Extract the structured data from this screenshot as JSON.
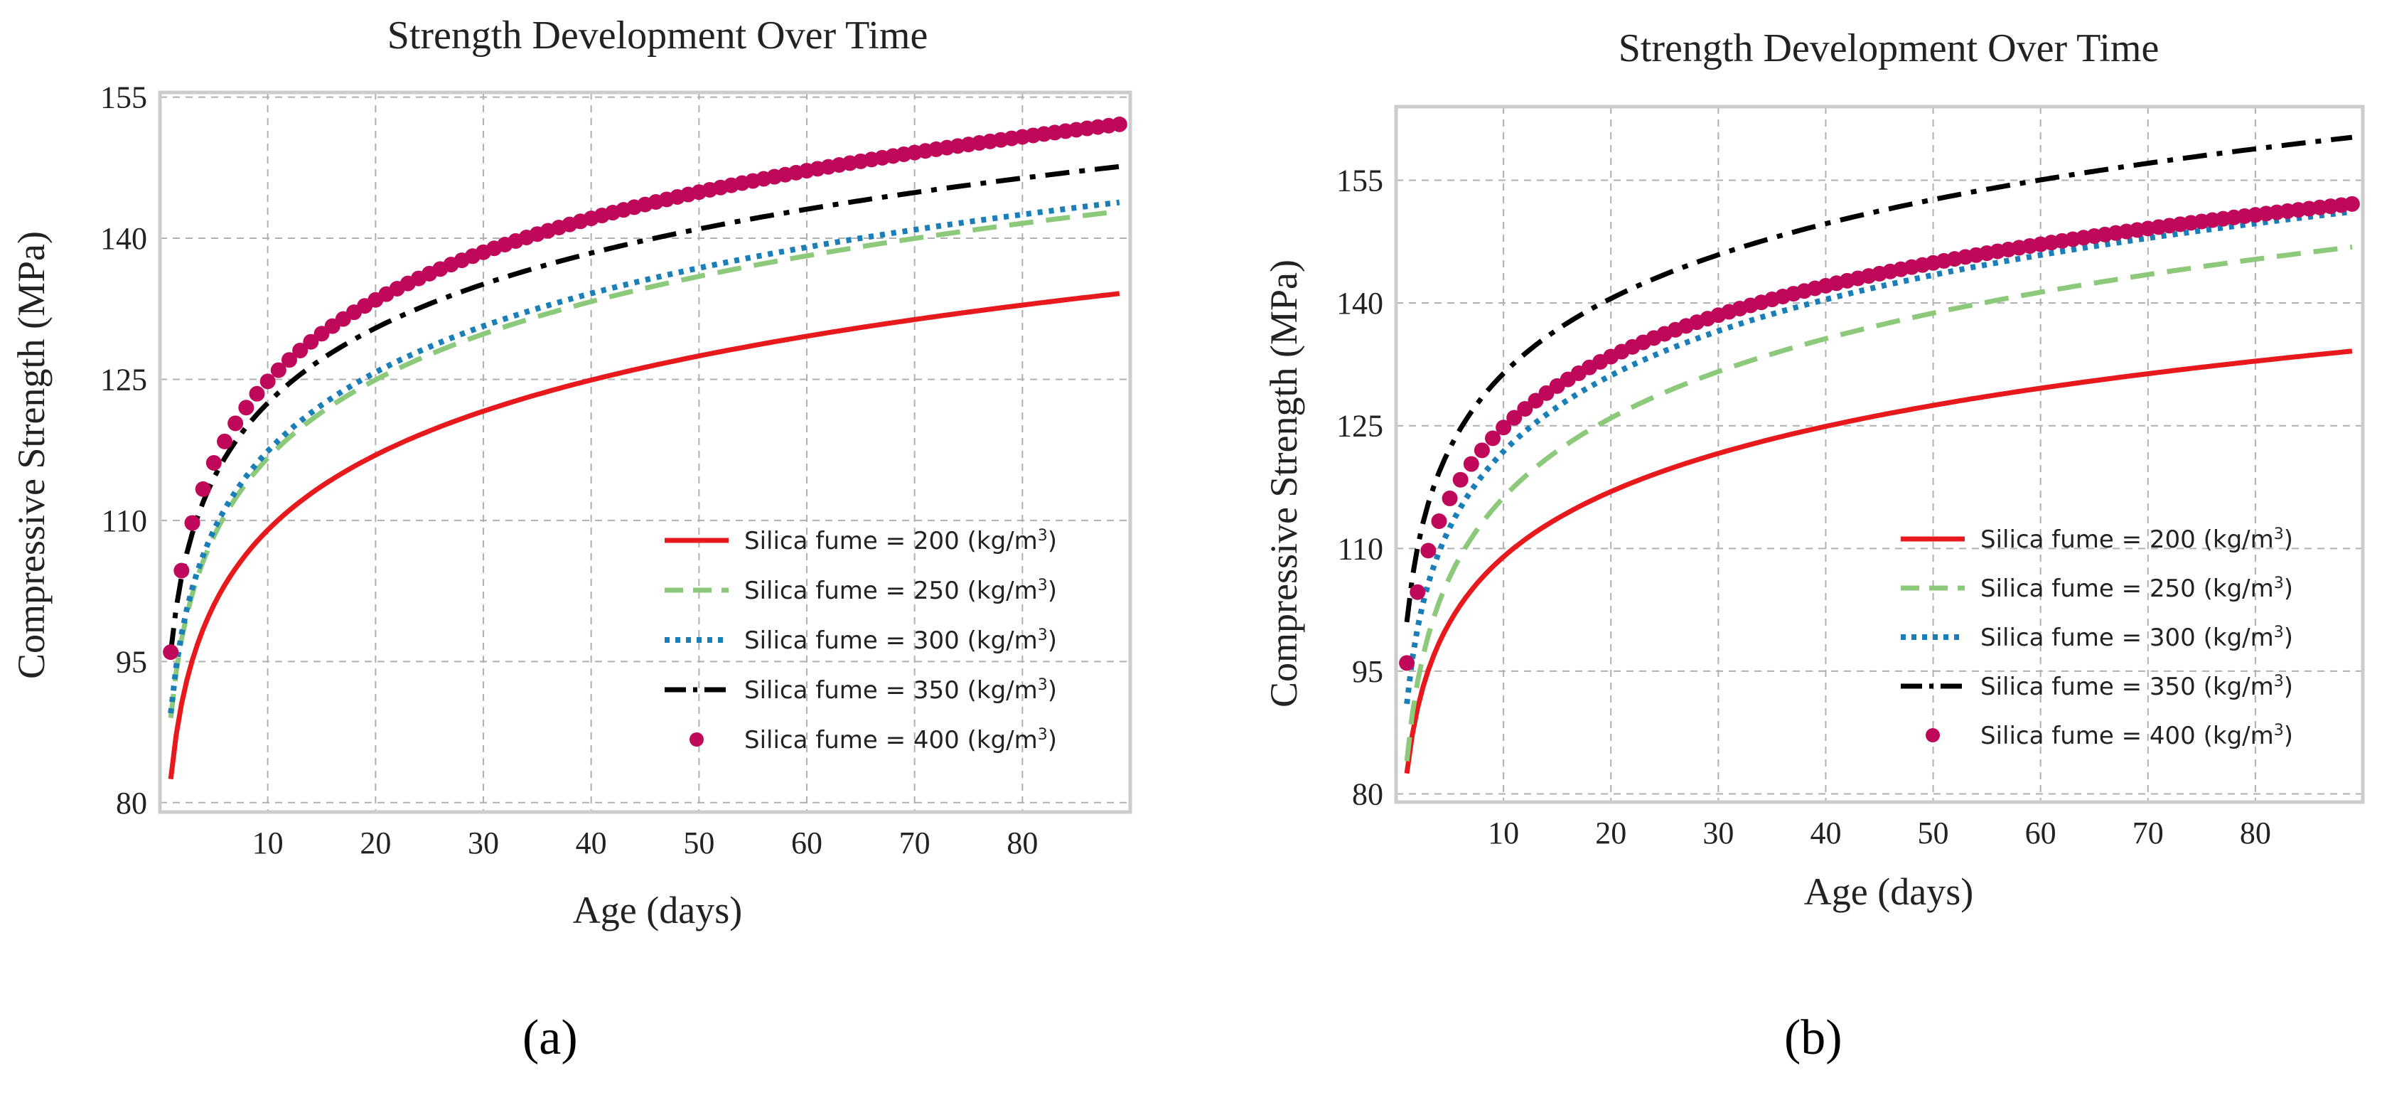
{
  "chart_data": [
    {
      "type": "line",
      "title": "Strength Development Over Time",
      "xlabel": "Age (days)",
      "ylabel": "Compressive Strength (MPa)",
      "xlim": [
        0,
        90
      ],
      "ylim": [
        79,
        155.5
      ],
      "xticks": [
        10,
        20,
        30,
        40,
        50,
        60,
        70,
        80
      ],
      "yticks": [
        80,
        95,
        110,
        125,
        140,
        155
      ],
      "grid": true,
      "legend": "lower-right",
      "subfigure_label": "(a)",
      "series": [
        {
          "name": "Silica fume = 200 (kg/m³)",
          "legend_label": "Silica fume = 200 (kg/m",
          "color": "#e8191c",
          "style": "solid",
          "params": {
            "a": 82.5,
            "b": 11.5
          }
        },
        {
          "name": "Silica fume = 250 (kg/m³)",
          "legend_label": "Silica fume = 250 (kg/m",
          "color": "#8cc97a",
          "style": "dashed",
          "params": {
            "a": 89.0,
            "b": 12.0
          }
        },
        {
          "name": "Silica fume = 300 (kg/m³)",
          "legend_label": "Silica fume = 300 (kg/m",
          "color": "#1a7fb8",
          "style": "dotted",
          "params": {
            "a": 89.5,
            "b": 12.1
          }
        },
        {
          "name": "Silica fume = 350 (kg/m³)",
          "legend_label": "Silica fume = 350 (kg/m",
          "color": "#000000",
          "style": "dashdot",
          "params": {
            "a": 96.0,
            "b": 11.5
          }
        },
        {
          "name": "Silica fume = 400 (kg/m³)",
          "legend_label": "Silica fume = 400 (kg/m",
          "color": "#c0085a",
          "style": "markers",
          "params": {
            "a": 96.0,
            "b": 12.5
          }
        }
      ]
    },
    {
      "type": "line",
      "title": "Strength Development Over Time",
      "xlabel": "Age (days)",
      "ylabel": "Compressive Strength (MPa)",
      "xlim": [
        0,
        90
      ],
      "ylim": [
        79,
        164
      ],
      "xticks": [
        10,
        20,
        30,
        40,
        50,
        60,
        70,
        80
      ],
      "yticks": [
        80,
        95,
        110,
        125,
        140,
        155
      ],
      "grid": true,
      "legend": "lower-right",
      "subfigure_label": "(b)",
      "series": [
        {
          "name": "Silica fume = 200 (kg/m³)",
          "legend_label": "Silica fume = 200 (kg/m",
          "color": "#e8191c",
          "style": "solid",
          "params": {
            "a": 82.5,
            "b": 11.5
          }
        },
        {
          "name": "Silica fume = 250 (kg/m³)",
          "legend_label": "Silica fume = 250 (kg/m",
          "color": "#8cc97a",
          "style": "dashed",
          "params": {
            "a": 84.0,
            "b": 14.0
          }
        },
        {
          "name": "Silica fume = 300 (kg/m³)",
          "legend_label": "Silica fume = 300 (kg/m",
          "color": "#1a7fb8",
          "style": "dotted",
          "params": {
            "a": 91.0,
            "b": 13.4
          }
        },
        {
          "name": "Silica fume = 350 (kg/m³)",
          "legend_label": "Silica fume = 350 (kg/m",
          "color": "#000000",
          "style": "dashdot",
          "params": {
            "a": 101.0,
            "b": 13.2
          }
        },
        {
          "name": "Silica fume = 400 (kg/m³)",
          "legend_label": "Silica fume = 400 (kg/m",
          "color": "#c0085a",
          "style": "markers",
          "params": {
            "a": 96.0,
            "b": 12.5
          }
        }
      ]
    }
  ]
}
